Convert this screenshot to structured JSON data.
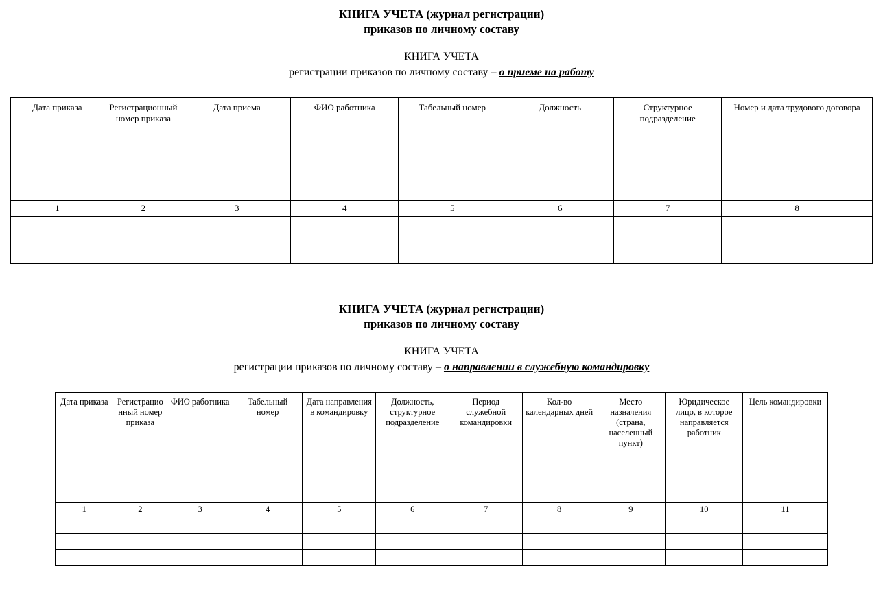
{
  "section1": {
    "title_line1": "КНИГА УЧЕТА (журнал регистрации)",
    "title_line2": "приказов по личному составу",
    "subtitle_line1": "КНИГА УЧЕТА",
    "subtitle_prefix": "регистрации приказов по личному составу – ",
    "subtitle_emph": "о приеме на работу",
    "columns": [
      "Дата приказа",
      "Регистрационный номер приказа",
      "Дата приема",
      "ФИО работника",
      "Табельный номер",
      "Должность",
      "Структурное подразделение",
      "Номер и дата трудового договора"
    ],
    "col_numbers": [
      "1",
      "2",
      "3",
      "4",
      "5",
      "6",
      "7",
      "8"
    ],
    "col_widths_pct": [
      10.8,
      9.2,
      12.5,
      12.5,
      12.5,
      12.5,
      12.5,
      17.5
    ],
    "empty_rows": 3
  },
  "section2": {
    "title_line1": "КНИГА УЧЕТА (журнал регистрации)",
    "title_line2": "приказов по личному составу",
    "subtitle_line1": "КНИГА УЧЕТА",
    "subtitle_prefix": "регистрации приказов по личному составу – ",
    "subtitle_emph": "о направлении в служебную командировку",
    "columns": [
      "Дата приказа",
      "Регистрационный номер приказа",
      "ФИО работника",
      "Табельный номер",
      "Дата направления в командировку",
      "Должность, структурное подразделение",
      "Период служебной командировки",
      "Кол-во календарных дней",
      "Место назначения (страна, населенный пункт)",
      "Юридическое лицо, в которое направляется работник",
      "Цель командировки"
    ],
    "col_numbers": [
      "1",
      "2",
      "3",
      "4",
      "5",
      "6",
      "7",
      "8",
      "9",
      "10",
      "11"
    ],
    "col_widths_pct": [
      7.5,
      7.0,
      8.5,
      9.0,
      9.5,
      9.5,
      9.5,
      9.5,
      9.0,
      10.0,
      11.0
    ],
    "empty_rows": 3
  },
  "styling": {
    "border_color": "#000000",
    "background_color": "#ffffff",
    "text_color": "#000000",
    "title_fontsize_pt": 13,
    "body_fontsize_pt": 10
  }
}
